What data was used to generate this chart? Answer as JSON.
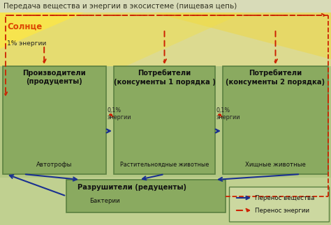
{
  "title": "Передача вещества и энергии в экосистеме (пищевая цепь)",
  "title_fontsize": 7.5,
  "bg_top": "#e8e4c0",
  "bg_main": "#c8d4a0",
  "bg_bottom": "#b8c890",
  "sun_label": "Солнце",
  "sun_color": "#dd4400",
  "box1_title": "Производители\n(продуценты)",
  "box1_sub": "Автотрофы",
  "box2_title": "Потребители\n(консументы 1 порядка )",
  "box2_sub": "Растительноядные животные",
  "box3_title": "Потребители\n(консументы 2 порядка)",
  "box3_sub": "Хищные животные",
  "box4_title": "Разрушители (редуценты)",
  "box4_sub": "Бактерии",
  "energy1": "1% энергии",
  "energy2": "0,1%\nэнергии",
  "energy3": "0,1%\nэнергии",
  "legend_matter": "Перенос вещества",
  "legend_energy": "Перенос энергии",
  "box_color": "#8aaa60",
  "box_edge": "#5a8040",
  "arrow_matter_color": "#1a3090",
  "arrow_energy_color": "#cc2200",
  "font_color": "#111111"
}
